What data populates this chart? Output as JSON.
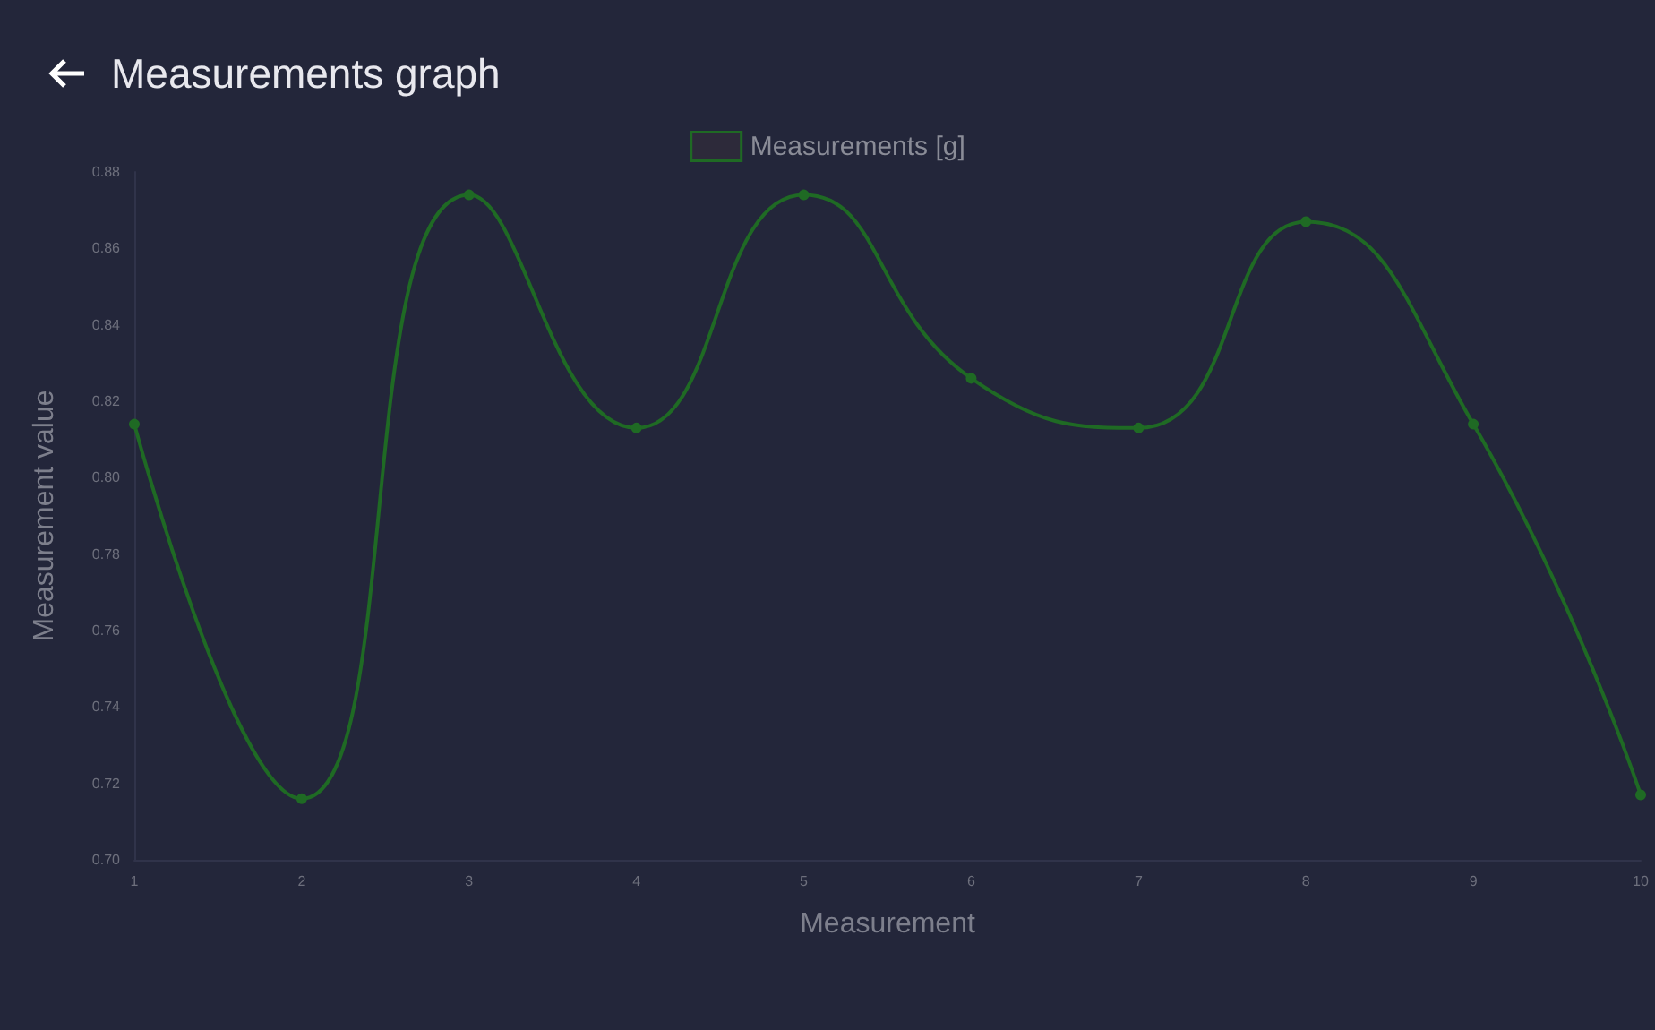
{
  "chart_data": {
    "type": "line",
    "title": "Measurements graph",
    "xlabel": "Measurement",
    "ylabel": "Measurement value",
    "x": [
      1,
      2,
      3,
      4,
      5,
      6,
      7,
      8,
      9,
      10
    ],
    "series": [
      {
        "name": "Measurements [g]",
        "color": "#1f6a24",
        "values": [
          0.814,
          0.716,
          0.874,
          0.813,
          0.874,
          0.826,
          0.813,
          0.867,
          0.814,
          0.717
        ]
      }
    ],
    "xlim": [
      1,
      10
    ],
    "xticks": [
      1,
      2,
      3,
      4,
      5,
      6,
      7,
      8,
      9,
      10
    ],
    "ylim": [
      0.7,
      0.88
    ],
    "yticks": [
      {
        "value": 0.7,
        "label": "0.70"
      },
      {
        "value": 0.72,
        "label": "0.72"
      },
      {
        "value": 0.74,
        "label": "0.74"
      },
      {
        "value": 0.76,
        "label": "0.76"
      },
      {
        "value": 0.78,
        "label": "0.78"
      },
      {
        "value": 0.8,
        "label": "0.80"
      },
      {
        "value": 0.82,
        "label": "0.82"
      },
      {
        "value": 0.84,
        "label": "0.84"
      },
      {
        "value": 0.86,
        "label": "0.86"
      },
      {
        "value": 0.88,
        "label": "0.88"
      }
    ],
    "grid": false,
    "legend": "top",
    "marker": "circle",
    "line_style": "solid"
  }
}
